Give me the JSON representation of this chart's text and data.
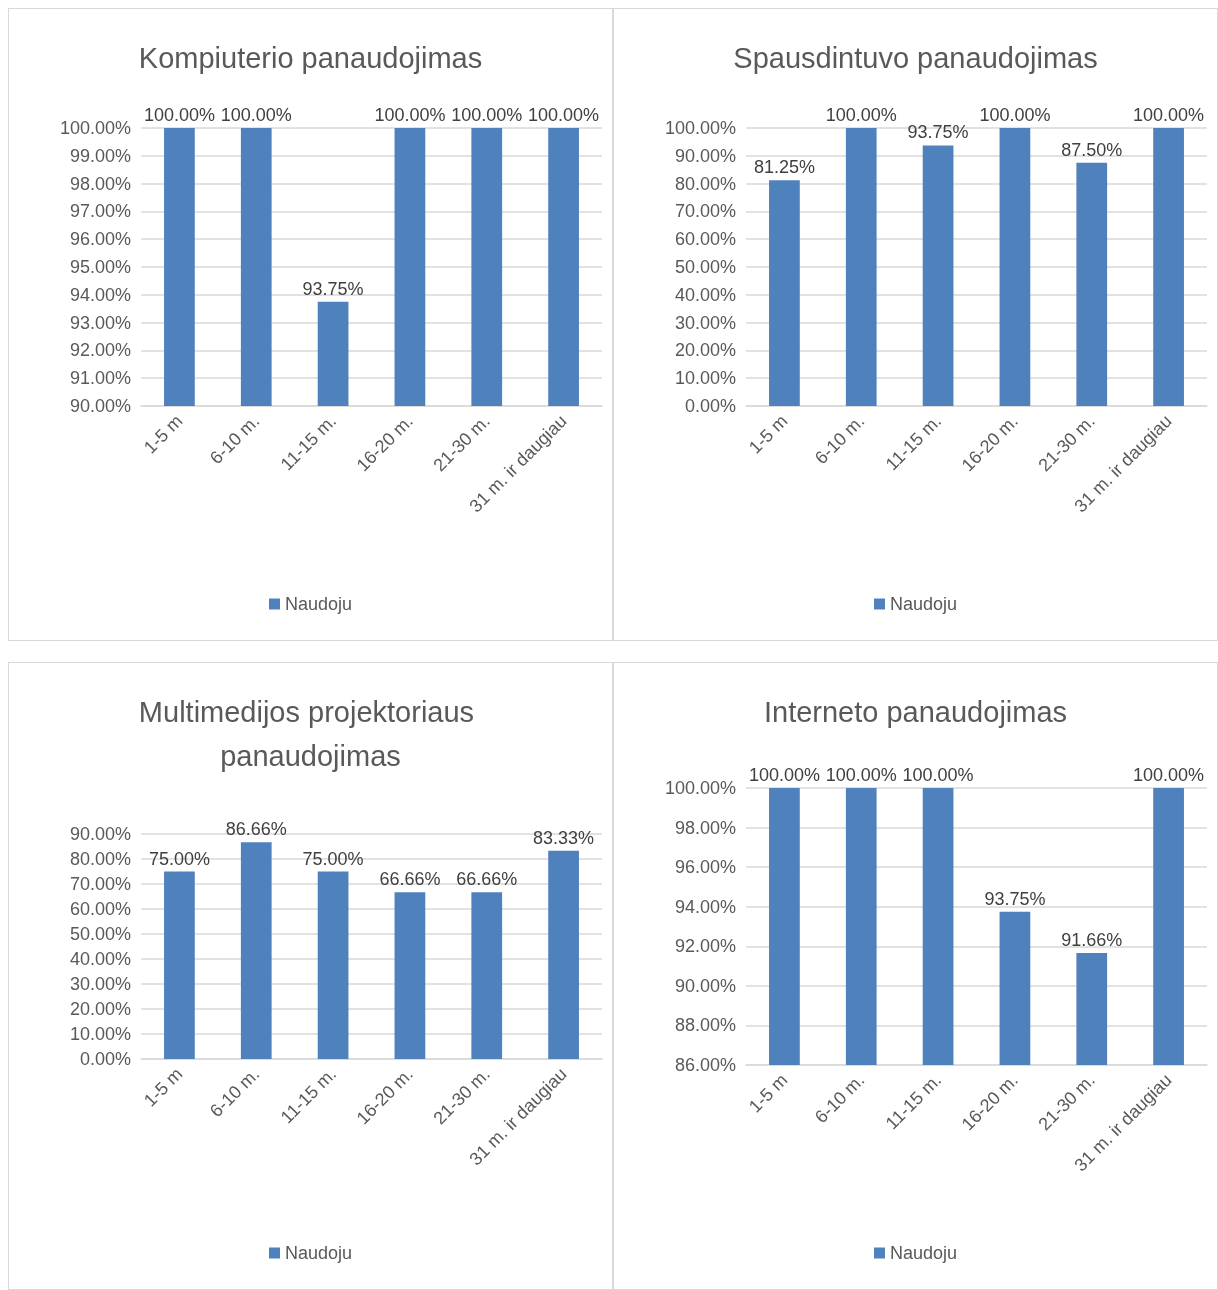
{
  "chart_data": [
    {
      "type": "bar",
      "title": "Kompiuterio panaudojimas",
      "categories": [
        "1-5 m",
        "6-10 m.",
        "11-15 m.",
        "16-20 m.",
        "21-30 m.",
        "31 m. ir daugiau"
      ],
      "series": [
        {
          "name": "Naudoju",
          "color": "#4f81bd",
          "values": [
            100,
            100,
            93.75,
            100,
            100,
            100
          ],
          "value_labels": [
            "100.00%",
            "100.00%",
            "93.75%",
            "100.00%",
            "100.00%",
            "100.00%"
          ]
        }
      ],
      "ylim": [
        90,
        100
      ],
      "yticks": [
        {
          "value": 90,
          "label": "90.00%"
        },
        {
          "value": 91,
          "label": "91.00%"
        },
        {
          "value": 92,
          "label": "92.00%"
        },
        {
          "value": 93,
          "label": "93.00%"
        },
        {
          "value": 94,
          "label": "94.00%"
        },
        {
          "value": 95,
          "label": "95.00%"
        },
        {
          "value": 96,
          "label": "96.00%"
        },
        {
          "value": 97,
          "label": "97.00%"
        },
        {
          "value": 98,
          "label": "98.00%"
        },
        {
          "value": 99,
          "label": "99.00%"
        },
        {
          "value": 100,
          "label": "100.00%"
        }
      ],
      "grid": "y",
      "legend": "bottom"
    },
    {
      "type": "bar",
      "title": "Spausdintuvo panaudojimas",
      "categories": [
        "1-5 m",
        "6-10 m.",
        "11-15 m.",
        "16-20 m.",
        "21-30 m.",
        "31 m. ir daugiau"
      ],
      "series": [
        {
          "name": "Naudoju",
          "color": "#4f81bd",
          "values": [
            81.25,
            100,
            93.75,
            100,
            87.5,
            100
          ],
          "value_labels": [
            "81.25%",
            "100.00%",
            "93.75%",
            "100.00%",
            "87.50%",
            "100.00%"
          ]
        }
      ],
      "ylim": [
        0,
        100
      ],
      "yticks": [
        {
          "value": 0,
          "label": "0.00%"
        },
        {
          "value": 10,
          "label": "10.00%"
        },
        {
          "value": 20,
          "label": "20.00%"
        },
        {
          "value": 30,
          "label": "30.00%"
        },
        {
          "value": 40,
          "label": "40.00%"
        },
        {
          "value": 50,
          "label": "50.00%"
        },
        {
          "value": 60,
          "label": "60.00%"
        },
        {
          "value": 70,
          "label": "70.00%"
        },
        {
          "value": 80,
          "label": "80.00%"
        },
        {
          "value": 90,
          "label": "90.00%"
        },
        {
          "value": 100,
          "label": "100.00%"
        }
      ],
      "grid": "y",
      "legend": "bottom"
    },
    {
      "type": "bar",
      "title": "Multimedijos projektoriaus panaudojimas",
      "categories": [
        "1-5 m",
        "6-10 m.",
        "11-15 m.",
        "16-20 m.",
        "21-30 m.",
        "31 m. ir daugiau"
      ],
      "series": [
        {
          "name": "Naudoju",
          "color": "#4f81bd",
          "values": [
            75,
            86.66,
            75,
            66.66,
            66.66,
            83.33
          ],
          "value_labels": [
            "75.00%",
            "86.66%",
            "75.00%",
            "66.66%",
            "66.66%",
            "83.33%"
          ]
        }
      ],
      "ylim": [
        0,
        90
      ],
      "yticks": [
        {
          "value": 0,
          "label": "0.00%"
        },
        {
          "value": 10,
          "label": "10.00%"
        },
        {
          "value": 20,
          "label": "20.00%"
        },
        {
          "value": 30,
          "label": "30.00%"
        },
        {
          "value": 40,
          "label": "40.00%"
        },
        {
          "value": 50,
          "label": "50.00%"
        },
        {
          "value": 60,
          "label": "60.00%"
        },
        {
          "value": 70,
          "label": "70.00%"
        },
        {
          "value": 80,
          "label": "80.00%"
        },
        {
          "value": 90,
          "label": "90.00%"
        }
      ],
      "grid": "y",
      "legend": "bottom"
    },
    {
      "type": "bar",
      "title": "Interneto panaudojimas",
      "categories": [
        "1-5 m",
        "6-10 m.",
        "11-15 m.",
        "16-20 m.",
        "21-30 m.",
        "31 m. ir daugiau"
      ],
      "series": [
        {
          "name": "Naudoju",
          "color": "#4f81bd",
          "values": [
            100,
            100,
            100,
            93.75,
            91.66,
            100
          ],
          "value_labels": [
            "100.00%",
            "100.00%",
            "100.00%",
            "93.75%",
            "91.66%",
            "100.00%"
          ]
        }
      ],
      "ylim": [
        86,
        100
      ],
      "yticks": [
        {
          "value": 86,
          "label": "86.00%"
        },
        {
          "value": 88,
          "label": "88.00%"
        },
        {
          "value": 90,
          "label": "90.00%"
        },
        {
          "value": 92,
          "label": "92.00%"
        },
        {
          "value": 94,
          "label": "94.00%"
        },
        {
          "value": 96,
          "label": "96.00%"
        },
        {
          "value": 98,
          "label": "98.00%"
        },
        {
          "value": 100,
          "label": "100.00%"
        }
      ],
      "grid": "y",
      "legend": "bottom"
    }
  ]
}
